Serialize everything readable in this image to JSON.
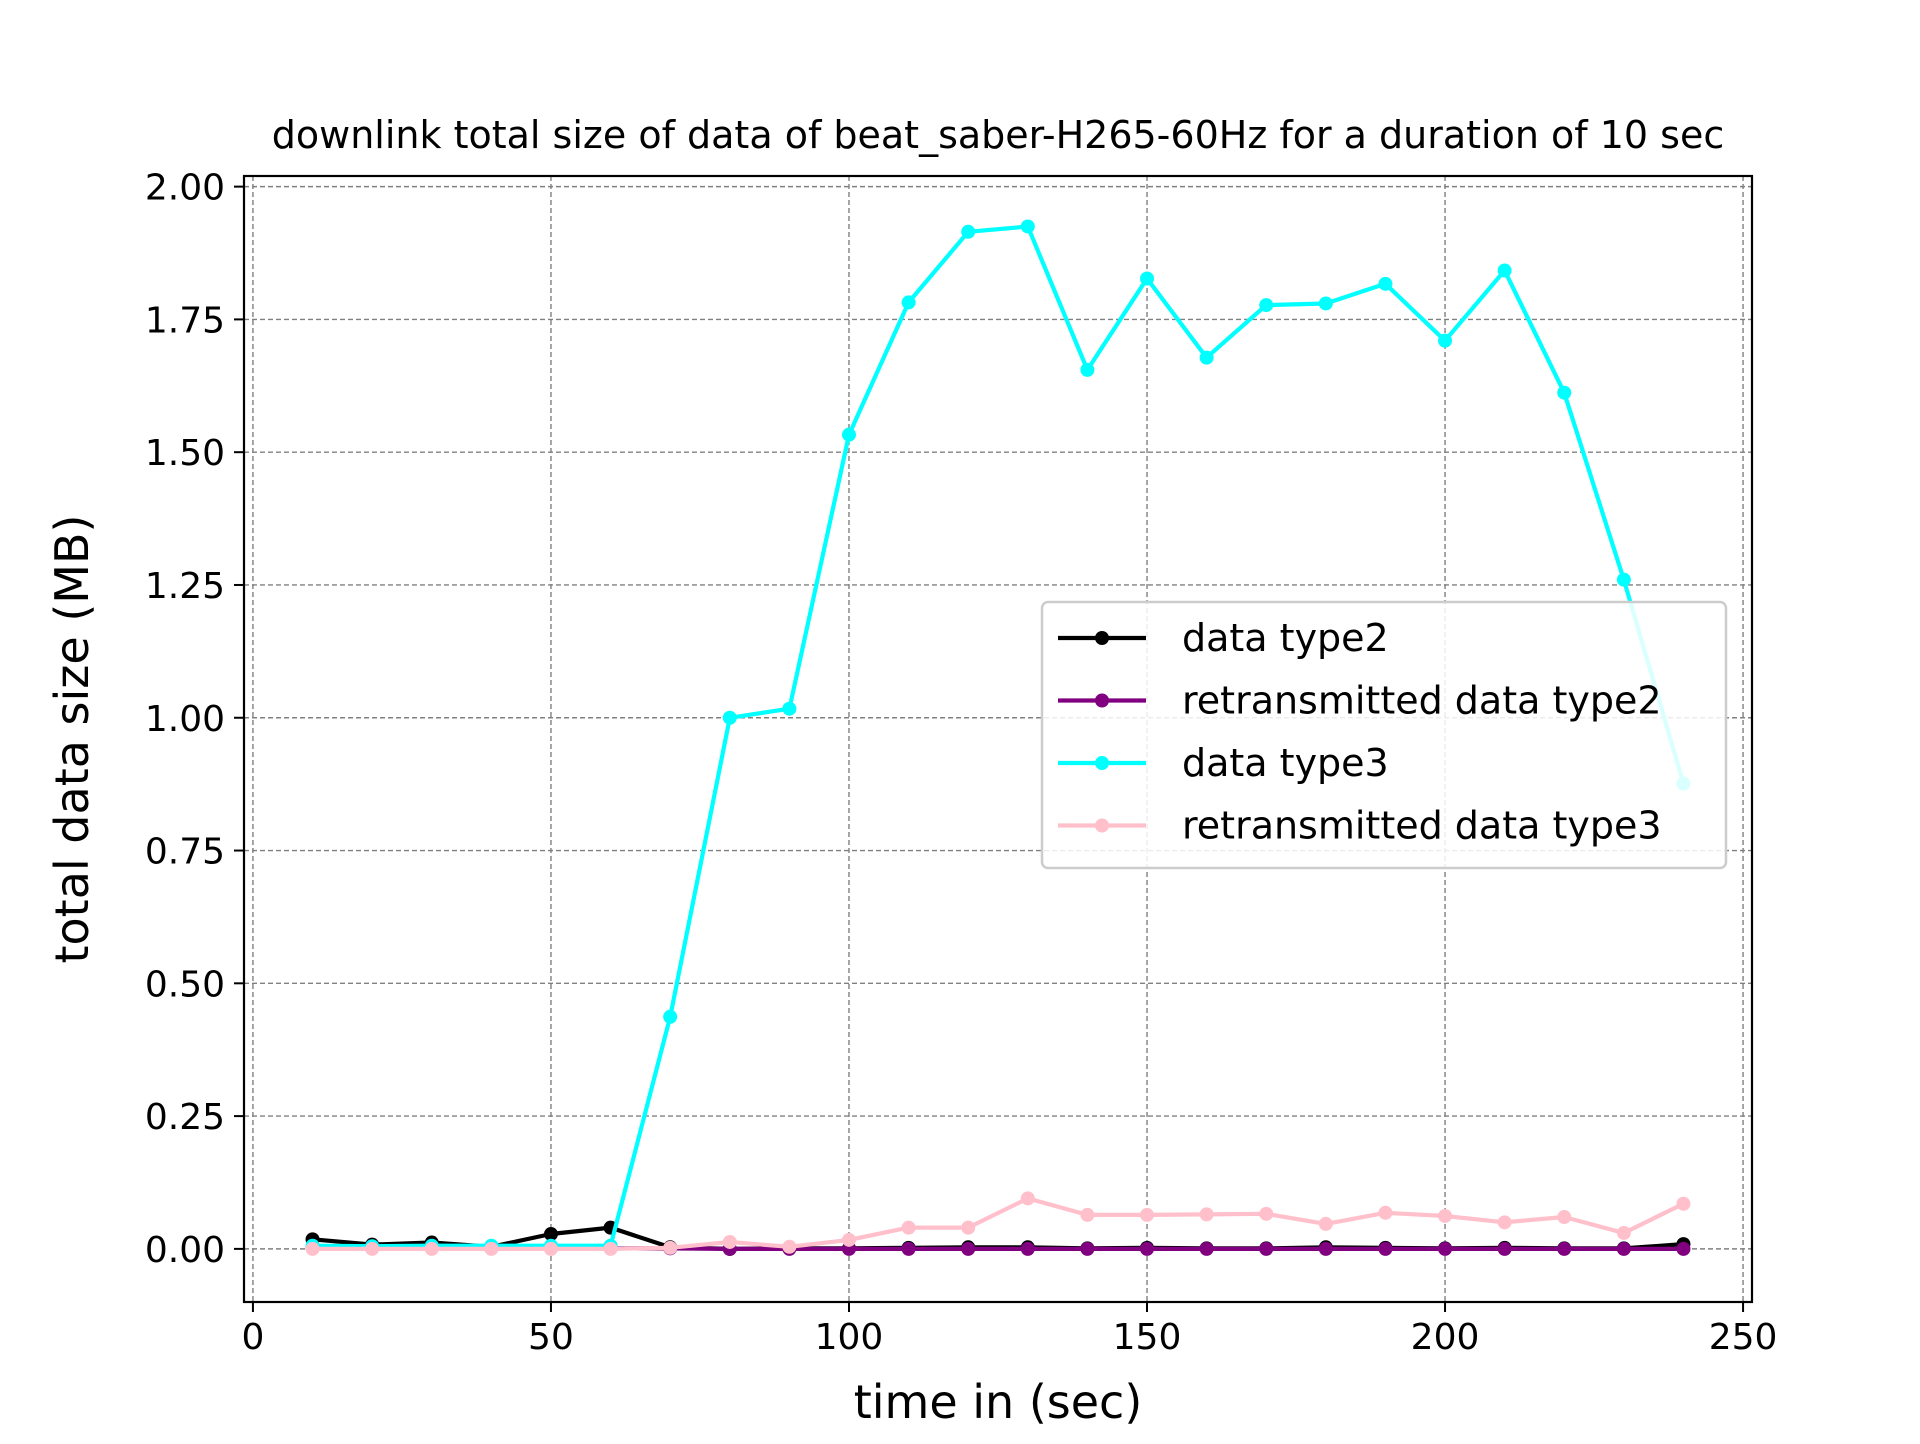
{
  "chart_data": {
    "type": "line",
    "title": "downlink total size of data of beat_saber-H265-60Hz for a duration of 10 sec",
    "xlabel": "time in (sec)",
    "ylabel": "total data size (MB)",
    "xlim": [
      -1.5,
      251.5
    ],
    "ylim": [
      -0.1,
      2.02
    ],
    "xticks": [
      0,
      50,
      100,
      150,
      200,
      250
    ],
    "xtick_labels": [
      "0",
      "50",
      "100",
      "150",
      "200",
      "250"
    ],
    "yticks": [
      0,
      0.25,
      0.5,
      0.75,
      1.0,
      1.25,
      1.5,
      1.75,
      2.0
    ],
    "ytick_labels": [
      "0.00",
      "0.25",
      "0.50",
      "0.75",
      "1.00",
      "1.25",
      "1.50",
      "1.75",
      "2.00"
    ],
    "grid": true,
    "legend_position": "center-right",
    "x": [
      10,
      20,
      30,
      40,
      50,
      60,
      70,
      80,
      90,
      100,
      110,
      120,
      130,
      140,
      150,
      160,
      170,
      180,
      190,
      200,
      210,
      220,
      230,
      240
    ],
    "series": [
      {
        "name": "data type2",
        "color": "#000000",
        "values": [
          0.018,
          0.008,
          0.012,
          0.004,
          0.028,
          0.04,
          0.003,
          0.0,
          0.001,
          0.001,
          0.002,
          0.003,
          0.003,
          0.001,
          0.002,
          0.001,
          0.001,
          0.003,
          0.002,
          0.001,
          0.002,
          0.001,
          0.001,
          0.009
        ]
      },
      {
        "name": "retransmitted data type2",
        "color": "#800080",
        "values": [
          0.002,
          0.001,
          0.002,
          0.001,
          0.001,
          0.001,
          0.001,
          0.0,
          0.0,
          0.0,
          0.0,
          0.0,
          0.0,
          0.0,
          0.0,
          0.0,
          0.0,
          0.0,
          0.0,
          0.0,
          0.0,
          0.0,
          0.0,
          0.0
        ]
      },
      {
        "name": "data type3",
        "color": "#00ffff",
        "values": [
          0.006,
          0.005,
          0.006,
          0.006,
          0.006,
          0.006,
          0.437,
          1.0,
          1.017,
          1.533,
          1.782,
          1.915,
          1.925,
          1.655,
          1.827,
          1.678,
          1.777,
          1.78,
          1.817,
          1.71,
          1.842,
          1.612,
          1.26,
          0.876
        ]
      },
      {
        "name": "retransmitted data type3",
        "color": "#ffc0cb",
        "values": [
          0.0,
          0.0,
          0.0,
          0.0,
          0.0,
          0.0,
          0.002,
          0.013,
          0.004,
          0.017,
          0.04,
          0.04,
          0.095,
          0.064,
          0.064,
          0.065,
          0.066,
          0.047,
          0.068,
          0.062,
          0.05,
          0.06,
          0.03,
          0.085
        ]
      }
    ]
  }
}
